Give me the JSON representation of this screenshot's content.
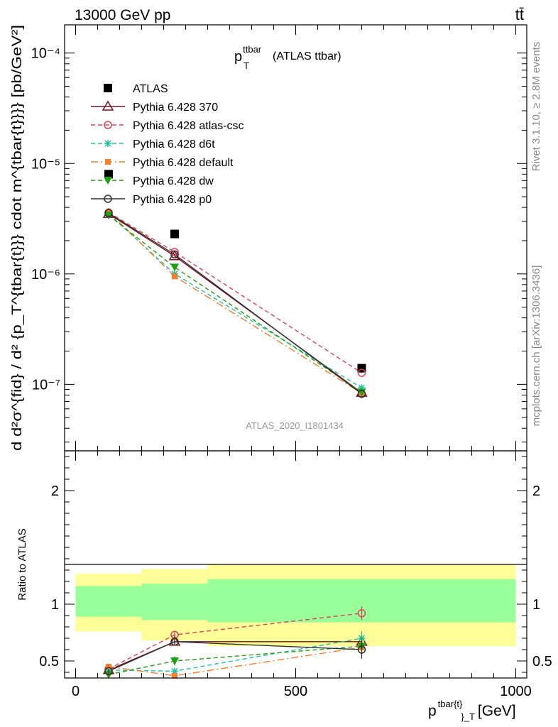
{
  "header": {
    "left": "13000 GeV pp",
    "right": "tt̄"
  },
  "side_labels": {
    "rivet": "Rivet 3.1.10, ≥ 2.8M events",
    "mcplots": "mcplots.cern.ch [arXiv:1306.3436]"
  },
  "watermark": "ATLAS_2020_I1801434",
  "colors": {
    "atlas": "#000000",
    "p370": "#7a1020",
    "atlas_csc": "#e0405a",
    "d6t": "#20c0a0",
    "default": "#f08030",
    "dw": "#20a010",
    "p0": "#303030",
    "band_inner": "#99ff99",
    "band_outer": "#ffff99"
  },
  "chart_data": [
    {
      "type": "scatter",
      "panel": "main",
      "title": "p_T^{ttbar} (ATLAS ttbar)",
      "title_main": "p",
      "title_sub": "T",
      "title_sup": "ttbar",
      "title_rest": "(ATLAS ttbar)",
      "ylabel": "d d²σ^{fid} / d² {p_T^{tbar{t}}} cdot m^{tbar{t}}}} [pb/GeV²]",
      "yscale": "log",
      "ylim": [
        2.5e-08,
        0.00018
      ],
      "xlim": [
        -25,
        1025
      ],
      "y_tick_labels": [
        "10⁻⁷",
        "10⁻⁶",
        "10⁻⁵",
        "10⁻⁴"
      ],
      "legend_position": "top-left",
      "series": [
        {
          "key": "atlas",
          "name": "ATLAS",
          "marker": "square",
          "line": "none",
          "x": [
            75,
            225,
            650
          ],
          "y": [
            8e-06,
            2.3e-06,
            1.4e-07
          ]
        },
        {
          "key": "p370",
          "name": "Pythia 6.428 370",
          "marker": "triangle-open",
          "line": "solid",
          "x": [
            75,
            225,
            650
          ],
          "y": [
            3.5e-06,
            1.45e-06,
            8.4e-08
          ]
        },
        {
          "key": "atlas_csc",
          "name": "Pythia 6.428 atlas-csc",
          "marker": "circle-open",
          "line": "dashed",
          "x": [
            75,
            225,
            650
          ],
          "y": [
            3.6e-06,
            1.58e-06,
            1.27e-07
          ]
        },
        {
          "key": "d6t",
          "name": "Pythia 6.428 d6t",
          "marker": "star",
          "line": "dashed",
          "x": [
            75,
            225,
            650
          ],
          "y": [
            3.5e-06,
            1e-06,
            9.3e-08
          ]
        },
        {
          "key": "default",
          "name": "Pythia 6.428 default",
          "marker": "square-small",
          "line": "dashdot",
          "x": [
            75,
            225,
            650
          ],
          "y": [
            3.65e-06,
            9.5e-07,
            8.3e-08
          ]
        },
        {
          "key": "dw",
          "name": "Pythia 6.428 dw",
          "marker": "triangle-down",
          "line": "dashed",
          "x": [
            75,
            225,
            650
          ],
          "y": [
            3.4e-06,
            1.15e-06,
            8.5e-08
          ]
        },
        {
          "key": "p0",
          "name": "Pythia 6.428 p0",
          "marker": "circle-open",
          "line": "solid",
          "x": [
            75,
            225,
            650
          ],
          "y": [
            3.55e-06,
            1.5e-06,
            8.2e-08
          ]
        }
      ]
    },
    {
      "type": "scatter",
      "panel": "ratio",
      "ylabel": "Ratio to ATLAS",
      "xlabel": "p^{tbar{t}}_T [GeV]",
      "xlabel_main": "p",
      "xlabel_sup": "tbar{t}",
      "xlabel_sub": "}_T",
      "xlabel_rest": "[GeV]",
      "ylim": [
        0.35,
        2.35
      ],
      "xlim": [
        -25,
        1025
      ],
      "x_ticks": [
        0,
        500,
        1000
      ],
      "y_ticks": [
        0.5,
        1,
        2
      ],
      "bands": [
        {
          "x0": 0,
          "x1": 150,
          "inner": [
            0.89,
            1.16
          ],
          "outer": [
            0.76,
            1.27
          ]
        },
        {
          "x0": 150,
          "x1": 300,
          "inner": [
            0.86,
            1.18
          ],
          "outer": [
            0.68,
            1.31
          ]
        },
        {
          "x0": 300,
          "x1": 1000,
          "inner": [
            0.84,
            1.22
          ],
          "outer": [
            0.63,
            1.35
          ]
        }
      ],
      "series": [
        {
          "key": "p370",
          "x": [
            75,
            225,
            650
          ],
          "y": [
            0.42,
            0.67,
            0.67
          ],
          "err": [
            0.02,
            0.03,
            0.03
          ]
        },
        {
          "key": "atlas_csc",
          "x": [
            75,
            225,
            650
          ],
          "y": [
            0.43,
            0.73,
            0.92
          ],
          "err": [
            0.02,
            0.03,
            0.06
          ]
        },
        {
          "key": "d6t",
          "x": [
            75,
            225,
            650
          ],
          "y": [
            0.42,
            0.41,
            0.7
          ],
          "err": [
            0.02,
            0.03,
            0.06
          ]
        },
        {
          "key": "default",
          "x": [
            75,
            225,
            650
          ],
          "y": [
            0.45,
            0.37,
            0.62
          ],
          "err": [
            0.02,
            0.02,
            0.06
          ]
        },
        {
          "key": "dw",
          "x": [
            75,
            225,
            650
          ],
          "y": [
            0.38,
            0.5,
            0.63
          ],
          "err": [
            0.02,
            0.04,
            0.07
          ]
        },
        {
          "key": "p0",
          "x": [
            75,
            225,
            650
          ],
          "y": [
            0.41,
            0.67,
            0.6
          ],
          "err": [
            0.02,
            0.03,
            0.08
          ]
        }
      ]
    }
  ]
}
